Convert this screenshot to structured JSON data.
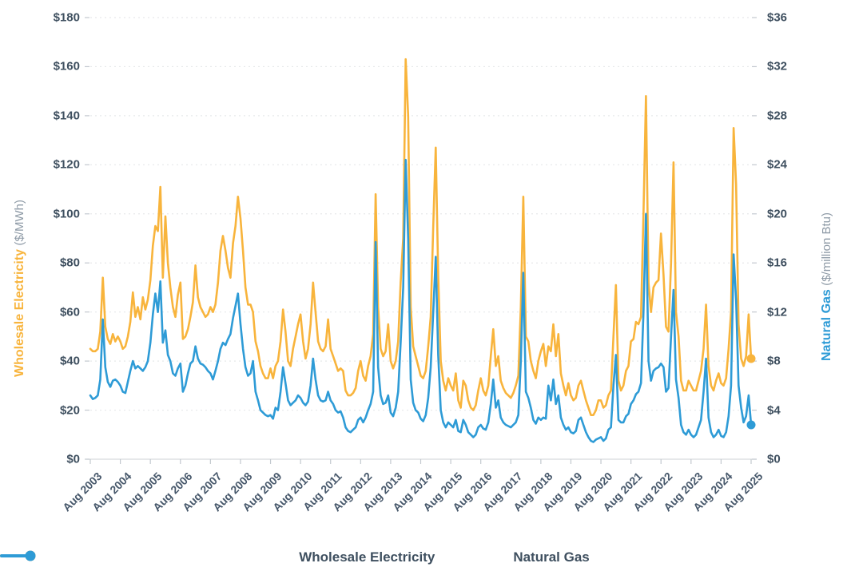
{
  "chart_data": {
    "type": "line",
    "title": "",
    "x_tick_labels": [
      "Aug 2003",
      "Aug 2004",
      "Aug 2005",
      "Aug 2006",
      "Aug 2007",
      "Aug 2008",
      "Aug 2009",
      "Aug 2010",
      "Aug 2011",
      "Aug 2012",
      "Aug 2013",
      "Aug 2014",
      "Aug 2015",
      "Aug 2016",
      "Aug 2017",
      "Aug 2018",
      "Aug 2019",
      "Aug 2020",
      "Aug 2021",
      "Aug 2022",
      "Aug 2023",
      "Aug 2024",
      "Aug 2025"
    ],
    "x_start_month": "Aug 2003",
    "x_end_month": "Aug 2025",
    "x_resolution": "monthly",
    "grid": "dashed-horizontal",
    "legend_position": "bottom-center",
    "left_axis": {
      "label": "Wholesale Electricity",
      "unit": "($/MWh)",
      "min": 0,
      "max": 180,
      "step": 20,
      "tick_labels": [
        "$0",
        "$20",
        "$40",
        "$60",
        "$80",
        "$100",
        "$120",
        "$140",
        "$160",
        "$180"
      ],
      "color": "#f8b43c"
    },
    "right_axis": {
      "label": "Natural Gas",
      "unit": "($/million Btu)",
      "min": 0,
      "max": 36,
      "step": 4,
      "tick_labels": [
        "$0",
        "$4",
        "$8",
        "$12",
        "$16",
        "$20",
        "$24",
        "$28",
        "$32",
        "$36"
      ],
      "color": "#2e9bd6"
    },
    "series": [
      {
        "name": "Wholesale Electricity",
        "axis": "left",
        "color": "#f8b43c",
        "values": [
          45,
          44,
          44,
          45,
          52,
          74,
          54,
          49,
          47,
          51,
          48,
          50,
          48,
          45,
          46,
          50,
          56,
          68,
          58,
          62,
          57,
          66,
          61,
          65,
          73,
          87,
          95,
          93,
          111,
          74,
          99,
          80,
          70,
          62,
          58,
          67,
          72,
          49,
          50,
          53,
          58,
          64,
          79,
          66,
          62,
          60,
          58,
          59,
          62,
          60,
          63,
          72,
          85,
          91,
          85,
          78,
          74,
          88,
          95,
          107,
          98,
          85,
          70,
          63,
          63,
          60,
          48,
          44,
          38,
          35,
          33,
          33,
          37,
          33,
          38,
          40,
          48,
          61,
          52,
          40,
          38,
          45,
          50,
          55,
          59,
          48,
          41,
          45,
          55,
          72,
          60,
          48,
          45,
          44,
          46,
          57,
          45,
          42,
          39,
          36,
          37,
          36,
          28,
          26,
          26,
          27,
          29,
          36,
          40,
          34,
          32,
          38,
          42,
          51,
          108,
          62,
          45,
          42,
          44,
          55,
          40,
          37,
          40,
          48,
          72,
          90,
          163,
          140,
          62,
          46,
          42,
          38,
          34,
          33,
          36,
          46,
          58,
          95,
          127,
          75,
          40,
          32,
          28,
          33,
          30,
          28,
          35,
          24,
          21,
          32,
          30,
          24,
          21,
          20,
          22,
          28,
          33,
          28,
          26,
          30,
          42,
          53,
          38,
          42,
          32,
          29,
          27,
          26,
          25,
          27,
          30,
          34,
          62,
          107,
          50,
          48,
          40,
          36,
          33,
          40,
          44,
          47,
          38,
          46,
          44,
          55,
          42,
          51,
          35,
          30,
          26,
          31,
          26,
          24,
          25,
          30,
          32,
          28,
          24,
          21,
          18,
          18,
          20,
          24,
          24,
          21,
          22,
          26,
          28,
          50,
          71,
          32,
          28,
          30,
          36,
          38,
          48,
          49,
          56,
          55,
          58,
          100,
          148,
          72,
          60,
          70,
          72,
          73,
          92,
          75,
          54,
          52,
          80,
          121,
          60,
          50,
          32,
          28,
          28,
          32,
          30,
          28,
          28,
          32,
          36,
          45,
          63,
          38,
          30,
          28,
          32,
          35,
          31,
          30,
          33,
          45,
          60,
          135,
          112,
          55,
          41,
          38,
          42,
          59,
          41
        ]
      },
      {
        "name": "Natural Gas",
        "axis": "right",
        "color": "#2e9bd6",
        "values": [
          5.2,
          4.9,
          5.0,
          5.2,
          6.5,
          11.4,
          7.5,
          6.3,
          5.9,
          6.4,
          6.5,
          6.3,
          6.0,
          5.5,
          5.4,
          6.3,
          7.2,
          8.0,
          7.4,
          7.6,
          7.4,
          7.2,
          7.5,
          8.0,
          9.5,
          11.8,
          13.5,
          12.0,
          14.5,
          9.5,
          10.5,
          8.5,
          8.0,
          7.0,
          6.8,
          7.4,
          7.8,
          5.5,
          6.0,
          7.0,
          7.8,
          8.0,
          9.2,
          8.2,
          7.8,
          7.7,
          7.5,
          7.2,
          7.0,
          6.5,
          7.2,
          8.0,
          9.0,
          9.5,
          9.3,
          9.8,
          10.2,
          11.5,
          12.5,
          13.5,
          11.0,
          9.0,
          7.5,
          6.8,
          7.0,
          8.0,
          5.5,
          4.8,
          4.0,
          3.8,
          3.6,
          3.5,
          3.6,
          3.3,
          4.2,
          4.0,
          5.5,
          7.5,
          6.2,
          4.8,
          4.4,
          4.6,
          4.8,
          5.2,
          5.0,
          4.6,
          4.4,
          4.7,
          6.0,
          8.2,
          6.5,
          5.2,
          4.8,
          4.7,
          4.8,
          5.5,
          4.8,
          4.5,
          4.0,
          3.8,
          3.9,
          3.4,
          2.6,
          2.3,
          2.2,
          2.4,
          2.6,
          3.2,
          3.4,
          3.0,
          3.4,
          4.0,
          4.5,
          5.5,
          17.7,
          7.5,
          5.2,
          4.5,
          4.6,
          5.2,
          3.8,
          3.5,
          4.2,
          5.5,
          9.5,
          14.0,
          24.4,
          18.0,
          6.5,
          4.6,
          4.0,
          3.8,
          3.3,
          3.1,
          3.6,
          5.0,
          7.5,
          12.0,
          16.5,
          8.5,
          4.0,
          3.0,
          2.6,
          3.0,
          2.8,
          2.6,
          3.2,
          2.3,
          2.2,
          3.2,
          2.8,
          2.2,
          2.0,
          1.8,
          2.0,
          2.6,
          2.8,
          2.5,
          2.4,
          3.0,
          4.5,
          6.5,
          4.2,
          4.8,
          3.4,
          3.0,
          2.8,
          2.7,
          2.6,
          2.8,
          3.0,
          3.6,
          8.0,
          15.2,
          5.5,
          5.0,
          4.2,
          3.2,
          2.9,
          3.4,
          3.2,
          3.4,
          3.3,
          6.0,
          4.8,
          6.5,
          4.5,
          5.2,
          3.4,
          2.8,
          2.4,
          2.6,
          2.2,
          2.1,
          2.3,
          3.2,
          3.4,
          2.8,
          2.2,
          1.8,
          1.5,
          1.4,
          1.6,
          1.7,
          1.8,
          1.5,
          1.7,
          2.4,
          2.6,
          6.0,
          8.5,
          3.2,
          3.0,
          3.0,
          3.5,
          3.7,
          4.5,
          4.8,
          5.3,
          5.5,
          6.2,
          12.0,
          20.0,
          8.0,
          6.4,
          7.2,
          7.4,
          7.5,
          7.8,
          7.5,
          5.5,
          5.8,
          10.0,
          13.8,
          6.5,
          5.0,
          2.8,
          2.2,
          2.0,
          2.4,
          2.0,
          1.8,
          2.0,
          2.6,
          3.2,
          5.5,
          8.2,
          3.4,
          2.2,
          1.8,
          2.0,
          2.4,
          1.9,
          1.8,
          2.2,
          3.5,
          6.0,
          16.7,
          13.0,
          6.0,
          4.2,
          3.0,
          3.5,
          5.2,
          2.8
        ]
      }
    ],
    "style": {
      "gridline_color": "#e6e8ea",
      "axisline_color": "#d7dadd",
      "tick_color": "#c3c9cf",
      "tick_text_color": "#3e4f5f",
      "line_width": 2.6,
      "end_dot_radius": 5.5
    }
  }
}
